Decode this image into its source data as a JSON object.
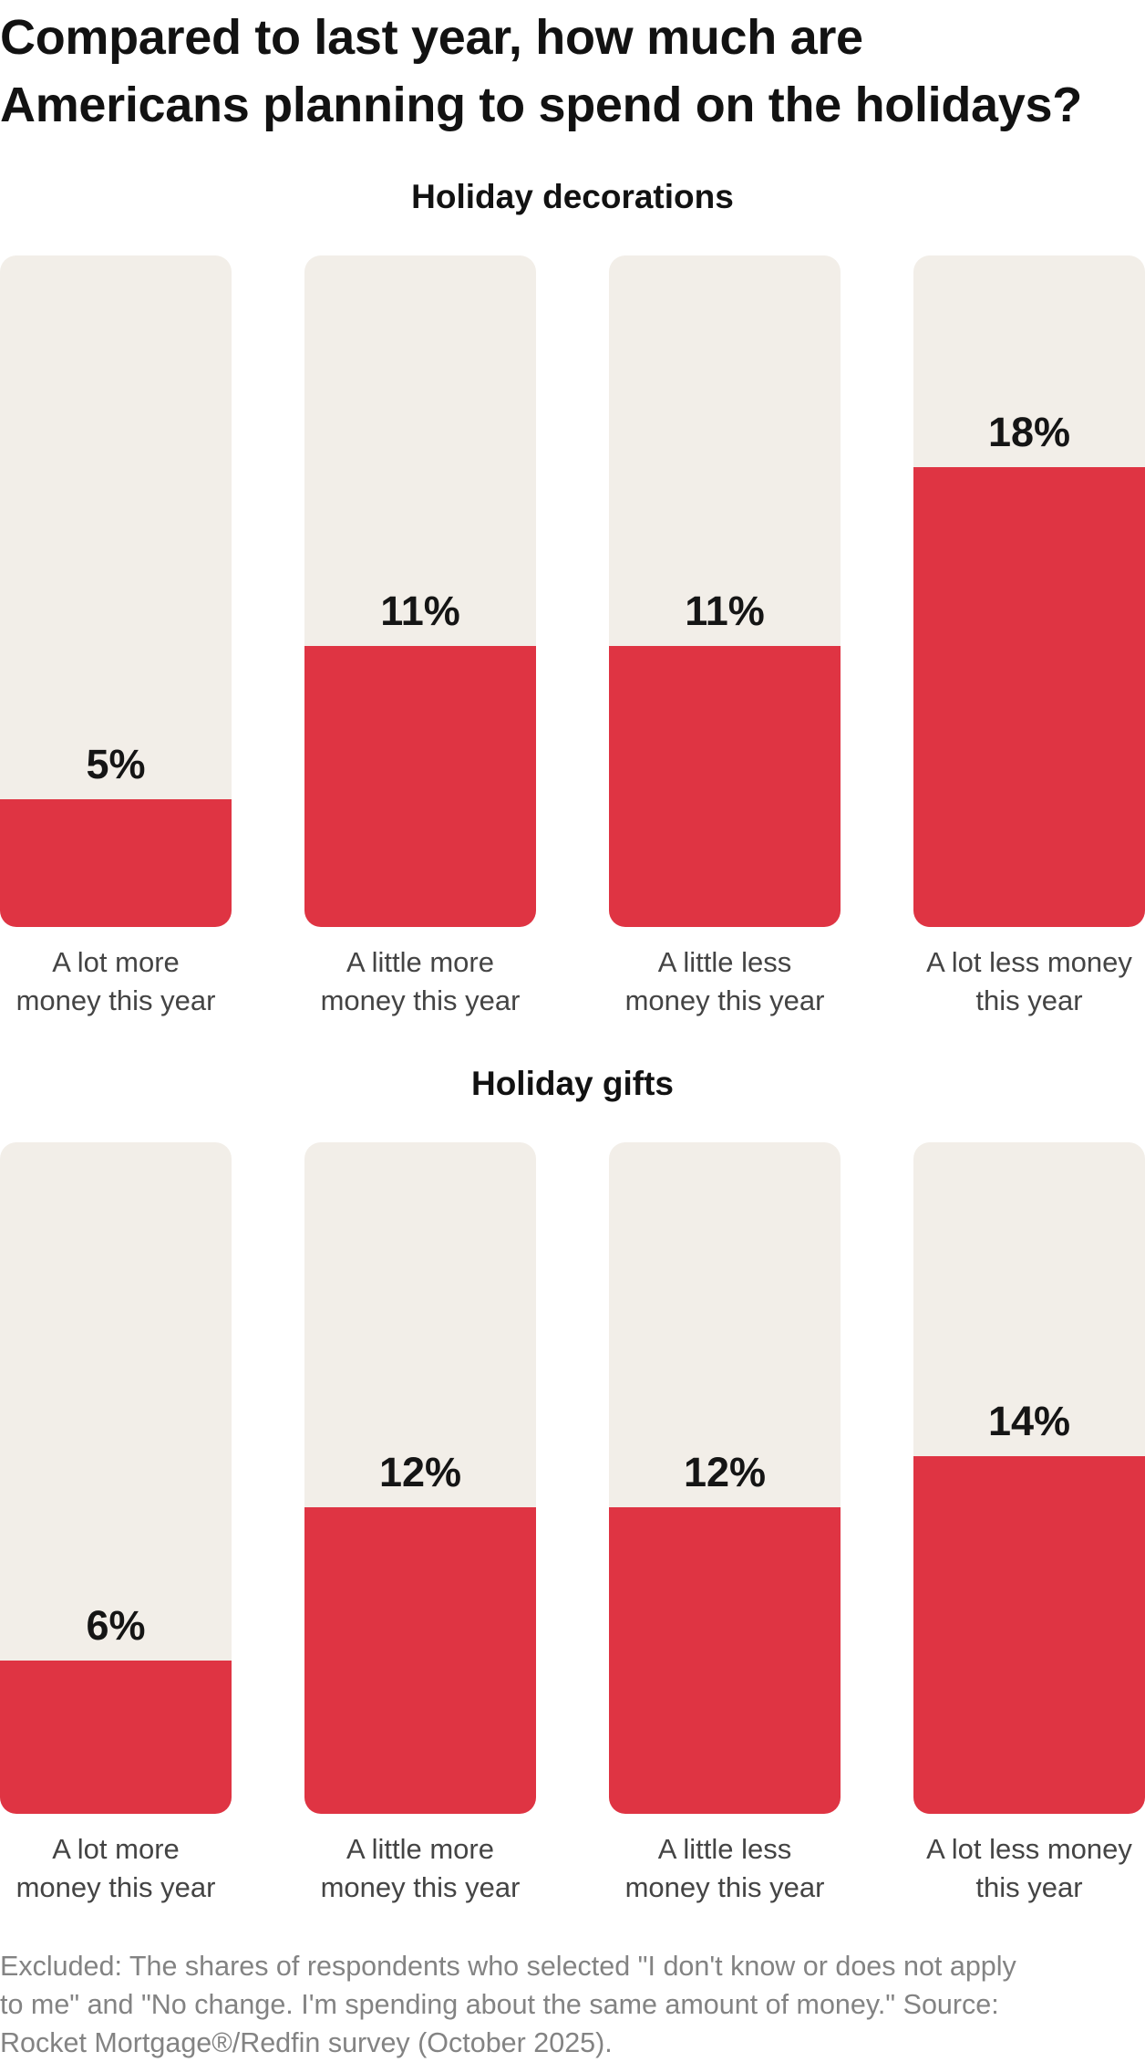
{
  "title_lines": [
    "Compared to last year, how much are",
    "Americans planning to spend on the holidays?"
  ],
  "colors": {
    "fill": "#DF3443",
    "track": "#F2EEE8",
    "text": "#121212",
    "label": "#444444",
    "footer": "#838383"
  },
  "categories": [
    [
      "A lot more",
      "money this year"
    ],
    [
      "A little more",
      "money this year"
    ],
    [
      "A little less",
      "money this year"
    ],
    [
      "A lot less money",
      "this year"
    ]
  ],
  "panels": [
    {
      "title": "Holiday decorations",
      "values": [
        5,
        11,
        11,
        18
      ],
      "labels": [
        "5%",
        "11%",
        "11%",
        "18%"
      ]
    },
    {
      "title": "Holiday gifts",
      "values": [
        6,
        12,
        12,
        14
      ],
      "labels": [
        "6%",
        "12%",
        "12%",
        "14%"
      ]
    }
  ],
  "footer_lines": [
    "Excluded: The shares of respondents who selected \"I don't know or does not apply",
    "to me\" and \"No change. I'm spending about the same amount of money.\" Source:",
    "Rocket Mortgage®/Redfin survey (October 2025)."
  ],
  "chart_data": [
    {
      "type": "bar",
      "title": "Holiday decorations",
      "subtitle": "Compared to last year, how much are Americans planning to spend on the holidays?",
      "categories": [
        "A lot more money this year",
        "A little more money this year",
        "A little less money this year",
        "A lot less money this year"
      ],
      "values": [
        5,
        11,
        11,
        18
      ],
      "unit": "%",
      "xlabel": "",
      "ylabel": "",
      "ylim": [
        0,
        26.3
      ],
      "grid": false,
      "legend": "none"
    },
    {
      "type": "bar",
      "title": "Holiday gifts",
      "categories": [
        "A lot more money this year",
        "A little more money this year",
        "A little less money this year",
        "A lot less money this year"
      ],
      "values": [
        6,
        12,
        12,
        14
      ],
      "unit": "%",
      "xlabel": "",
      "ylabel": "",
      "ylim": [
        0,
        26.3
      ],
      "grid": false,
      "legend": "none"
    }
  ]
}
